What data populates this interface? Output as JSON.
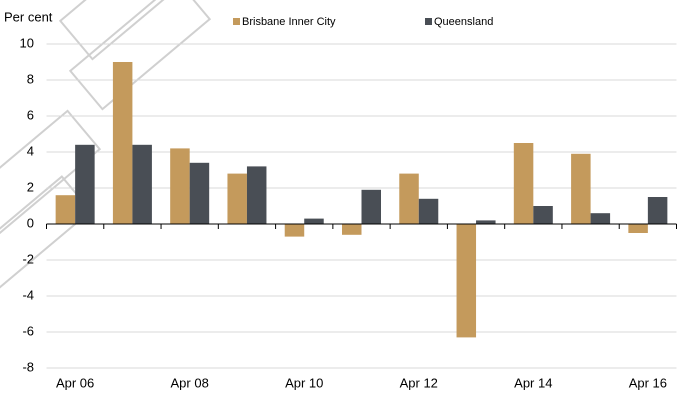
{
  "chart_data": {
    "type": "bar",
    "y_label": "Per cent",
    "categories": [
      "Apr 06",
      null,
      "Apr 08",
      null,
      "Apr 10",
      null,
      "Apr 12",
      null,
      "Apr 14",
      null,
      "Apr 16"
    ],
    "series": [
      {
        "name": "Brisbane Inner City",
        "color": "#c49a5c",
        "values": [
          1.6,
          9.0,
          4.2,
          2.8,
          -0.7,
          -0.6,
          2.8,
          -6.3,
          4.5,
          3.9,
          -0.5
        ]
      },
      {
        "name": "Queensland",
        "color": "#494e55",
        "values": [
          4.4,
          4.4,
          3.4,
          3.2,
          0.3,
          1.9,
          1.4,
          0.2,
          1.0,
          0.6,
          1.5
        ]
      }
    ],
    "ylim": [
      -8,
      10
    ],
    "yticks": [
      -8,
      -6,
      -4,
      -2,
      0,
      2,
      4,
      6,
      8,
      10
    ],
    "grid": true
  }
}
